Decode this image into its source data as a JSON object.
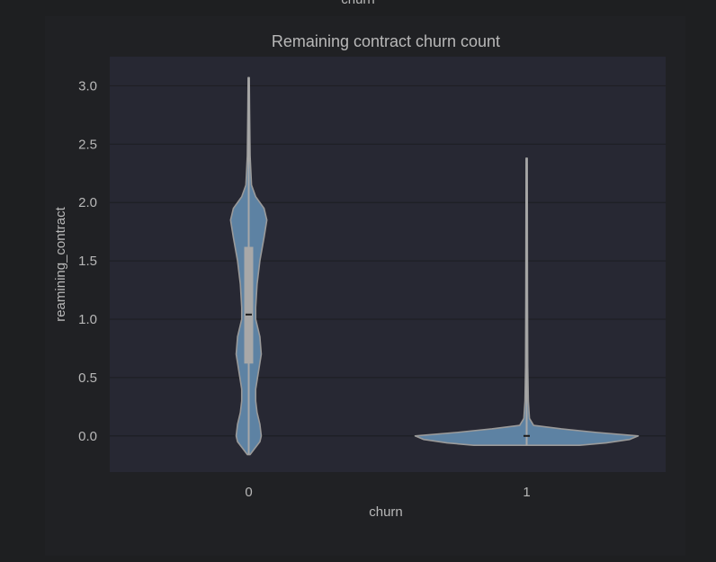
{
  "top_clipped_label": "churn",
  "chart_data": {
    "type": "violin",
    "title": "Remaining contract churn count",
    "xlabel": "churn",
    "ylabel": "reamining_contract",
    "categories": [
      "0",
      "1"
    ],
    "ylim": [
      -0.31,
      3.25
    ],
    "yticks": [
      0.0,
      0.5,
      1.0,
      1.5,
      2.0,
      2.5,
      3.0
    ],
    "ytick_labels": [
      "0.0",
      "0.5",
      "1.0",
      "1.5",
      "2.0",
      "2.5",
      "3.0"
    ],
    "grid": true,
    "series": [
      {
        "category": "0",
        "min": -0.16,
        "max": 3.07,
        "median": 1.04,
        "q1": 0.62,
        "q3": 1.62,
        "density": [
          [
            -0.16,
            0.01
          ],
          [
            -0.05,
            0.08
          ],
          [
            0.0,
            0.09
          ],
          [
            0.1,
            0.08
          ],
          [
            0.2,
            0.06
          ],
          [
            0.3,
            0.05
          ],
          [
            0.4,
            0.05
          ],
          [
            0.55,
            0.07
          ],
          [
            0.7,
            0.09
          ],
          [
            0.85,
            0.08
          ],
          [
            1.0,
            0.05
          ],
          [
            1.1,
            0.05
          ],
          [
            1.3,
            0.06
          ],
          [
            1.5,
            0.08
          ],
          [
            1.7,
            0.11
          ],
          [
            1.85,
            0.13
          ],
          [
            1.95,
            0.11
          ],
          [
            2.05,
            0.05
          ],
          [
            2.15,
            0.02
          ],
          [
            2.4,
            0.01
          ],
          [
            2.8,
            0.006
          ],
          [
            3.07,
            0.004
          ]
        ]
      },
      {
        "category": "1",
        "min": -0.08,
        "max": 2.38,
        "median": 0.0,
        "q1": 0.0,
        "q3": 0.0,
        "density": [
          [
            -0.08,
            0.38
          ],
          [
            -0.06,
            0.57
          ],
          [
            -0.03,
            0.74
          ],
          [
            0.0,
            0.8
          ],
          [
            0.03,
            0.5
          ],
          [
            0.06,
            0.25
          ],
          [
            0.09,
            0.05
          ],
          [
            0.15,
            0.02
          ],
          [
            0.3,
            0.012
          ],
          [
            0.6,
            0.008
          ],
          [
            1.2,
            0.006
          ],
          [
            1.8,
            0.005
          ],
          [
            2.38,
            0.004
          ]
        ]
      }
    ],
    "colors": {
      "violin_fill": "#5d82a3",
      "violin_edge": "#9a9a9a",
      "box": "#a8a8a8",
      "median": "#1a1a1a",
      "axes_bg": "#272833",
      "figure_bg": "#202124",
      "grid": "#1e1f24",
      "text": "#b8b8b8"
    }
  }
}
